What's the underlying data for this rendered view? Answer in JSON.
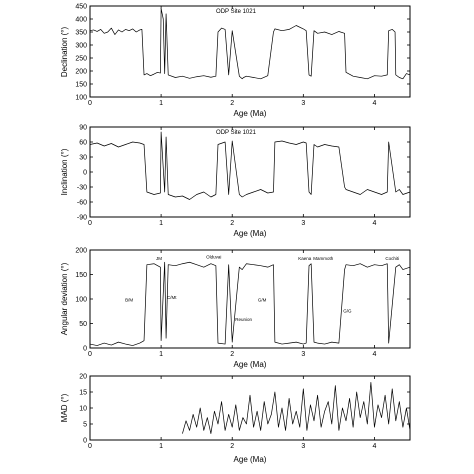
{
  "chart_data": [
    {
      "type": "line",
      "title": "ODP Site 1021",
      "xlabel": "Age (Ma)",
      "ylabel": "Declination (°)",
      "xlim": [
        0,
        4.5
      ],
      "ylim": [
        100,
        450
      ],
      "xticks": [
        "0",
        "1",
        "2",
        "3",
        "4"
      ],
      "yticks": [
        "100",
        "150",
        "200",
        "250",
        "300",
        "350",
        "400",
        "450"
      ],
      "annotations": [],
      "series": [
        {
          "x": [
            0,
            0.05,
            0.1,
            0.15,
            0.2,
            0.25,
            0.3,
            0.35,
            0.4,
            0.45,
            0.5,
            0.55,
            0.6,
            0.65,
            0.7,
            0.73,
            0.76,
            0.8,
            0.85,
            0.9,
            0.95,
            0.99,
            1.0,
            1.03,
            1.05,
            1.07,
            1.1,
            1.2,
            1.3,
            1.4,
            1.5,
            1.6,
            1.7,
            1.77,
            1.8,
            1.85,
            1.9,
            1.95,
            2.0,
            2.1,
            2.14,
            2.16,
            2.2,
            2.3,
            2.4,
            2.5,
            2.58,
            2.6,
            2.7,
            2.8,
            2.9,
            3.0,
            3.04,
            3.08,
            3.11,
            3.15,
            3.2,
            3.3,
            3.4,
            3.5,
            3.58,
            3.6,
            3.7,
            3.8,
            3.9,
            4.0,
            4.1,
            4.18,
            4.2,
            4.25,
            4.29,
            4.3,
            4.35,
            4.4,
            4.45,
            4.5
          ],
          "y": [
            355,
            358,
            352,
            360,
            345,
            350,
            365,
            340,
            358,
            350,
            360,
            355,
            362,
            350,
            358,
            360,
            185,
            190,
            182,
            188,
            195,
            192,
            440,
            400,
            190,
            420,
            185,
            175,
            180,
            172,
            178,
            182,
            176,
            180,
            350,
            365,
            360,
            185,
            355,
            180,
            170,
            175,
            180,
            175,
            170,
            182,
            350,
            362,
            355,
            360,
            375,
            362,
            355,
            185,
            180,
            355,
            345,
            350,
            340,
            352,
            345,
            195,
            180,
            175,
            170,
            182,
            180,
            185,
            355,
            360,
            350,
            185,
            175,
            170,
            190,
            185
          ]
        }
      ]
    },
    {
      "type": "line",
      "title": "ODP Site 1021",
      "xlabel": "Age (Ma)",
      "ylabel": "Inclination (°)",
      "xlim": [
        0,
        4.5
      ],
      "ylim": [
        -90,
        90
      ],
      "xticks": [
        "0",
        "1",
        "2",
        "3",
        "4"
      ],
      "yticks": [
        "-90",
        "-60",
        "-30",
        "0",
        "30",
        "60",
        "90"
      ],
      "annotations": [],
      "series": [
        {
          "x": [
            0,
            0.1,
            0.2,
            0.3,
            0.4,
            0.5,
            0.6,
            0.7,
            0.76,
            0.8,
            0.9,
            0.99,
            1.0,
            1.05,
            1.07,
            1.1,
            1.2,
            1.3,
            1.4,
            1.5,
            1.6,
            1.7,
            1.77,
            1.8,
            1.9,
            1.95,
            2.0,
            2.1,
            2.14,
            2.2,
            2.3,
            2.4,
            2.5,
            2.58,
            2.6,
            2.7,
            2.8,
            2.9,
            3.0,
            3.04,
            3.08,
            3.11,
            3.15,
            3.2,
            3.3,
            3.4,
            3.5,
            3.58,
            3.6,
            3.7,
            3.8,
            3.9,
            4.0,
            4.1,
            4.18,
            4.2,
            4.3,
            4.35,
            4.4,
            4.5
          ],
          "y": [
            55,
            58,
            52,
            57,
            50,
            55,
            60,
            58,
            55,
            -40,
            -45,
            -42,
            80,
            -40,
            70,
            -45,
            -50,
            -48,
            -55,
            -45,
            -40,
            -50,
            -45,
            55,
            60,
            -45,
            62,
            -45,
            -50,
            -45,
            -40,
            -35,
            -42,
            -40,
            60,
            62,
            58,
            55,
            60,
            58,
            -40,
            -45,
            55,
            50,
            55,
            52,
            50,
            -30,
            -35,
            -40,
            -45,
            -35,
            -40,
            -45,
            -40,
            60,
            -40,
            -35,
            -45,
            -40
          ]
        }
      ]
    },
    {
      "type": "line",
      "title": "",
      "xlabel": "Age (Ma)",
      "ylabel": "Angular deviation (°)",
      "xlim": [
        0,
        4.5
      ],
      "ylim": [
        0,
        200
      ],
      "xticks": [
        "0",
        "1",
        "2",
        "3",
        "4"
      ],
      "yticks": [
        "0",
        "50",
        "100",
        "150",
        "200"
      ],
      "annotations": [
        {
          "text": "B/M",
          "x": 0.55,
          "y": 95
        },
        {
          "text": "JM",
          "x": 0.97,
          "y": 180
        },
        {
          "text": "C/Mt",
          "x": 1.15,
          "y": 100
        },
        {
          "text": "Olduvai",
          "x": 1.74,
          "y": 183
        },
        {
          "text": "Reunion",
          "x": 2.16,
          "y": 55
        },
        {
          "text": "G/M",
          "x": 2.42,
          "y": 95
        },
        {
          "text": "Kaena",
          "x": 3.02,
          "y": 180
        },
        {
          "text": "Mammoth",
          "x": 3.28,
          "y": 180
        },
        {
          "text": "G/G",
          "x": 3.62,
          "y": 72
        },
        {
          "text": "Cochiti",
          "x": 4.25,
          "y": 180
        }
      ],
      "series": [
        {
          "x": [
            0,
            0.1,
            0.2,
            0.3,
            0.4,
            0.5,
            0.6,
            0.7,
            0.76,
            0.8,
            0.9,
            0.99,
            1.0,
            1.05,
            1.07,
            1.1,
            1.2,
            1.3,
            1.4,
            1.5,
            1.6,
            1.7,
            1.77,
            1.8,
            1.9,
            1.95,
            2.0,
            2.1,
            2.14,
            2.2,
            2.3,
            2.4,
            2.5,
            2.58,
            2.6,
            2.7,
            2.8,
            2.9,
            3.0,
            3.04,
            3.08,
            3.11,
            3.15,
            3.2,
            3.3,
            3.4,
            3.5,
            3.58,
            3.6,
            3.7,
            3.8,
            3.9,
            4.0,
            4.1,
            4.18,
            4.2,
            4.3,
            4.35,
            4.4,
            4.5
          ],
          "y": [
            8,
            5,
            10,
            6,
            12,
            8,
            5,
            10,
            15,
            170,
            172,
            165,
            15,
            175,
            20,
            170,
            168,
            172,
            175,
            170,
            165,
            172,
            168,
            10,
            8,
            170,
            12,
            165,
            160,
            172,
            170,
            168,
            165,
            170,
            12,
            8,
            10,
            12,
            8,
            10,
            168,
            172,
            12,
            10,
            8,
            12,
            10,
            160,
            170,
            168,
            172,
            165,
            170,
            168,
            172,
            10,
            165,
            170,
            160,
            165
          ]
        }
      ]
    },
    {
      "type": "line",
      "title": "",
      "xlabel": "Age (Ma)",
      "ylabel": "MAD (°)",
      "xlim": [
        0,
        4.5
      ],
      "ylim": [
        0,
        20
      ],
      "xticks": [
        "0",
        "1",
        "2",
        "3",
        "4"
      ],
      "yticks": [
        "0",
        "5",
        "10",
        "15",
        "20"
      ],
      "annotations": [],
      "series": [
        {
          "x": [
            1.3,
            1.35,
            1.4,
            1.45,
            1.5,
            1.55,
            1.6,
            1.65,
            1.7,
            1.75,
            1.8,
            1.85,
            1.9,
            1.95,
            2.0,
            2.05,
            2.1,
            2.15,
            2.2,
            2.25,
            2.3,
            2.35,
            2.4,
            2.45,
            2.5,
            2.55,
            2.6,
            2.65,
            2.7,
            2.75,
            2.8,
            2.85,
            2.9,
            2.95,
            3.0,
            3.05,
            3.1,
            3.15,
            3.2,
            3.25,
            3.3,
            3.35,
            3.4,
            3.45,
            3.5,
            3.55,
            3.6,
            3.65,
            3.7,
            3.75,
            3.8,
            3.85,
            3.9,
            3.95,
            4.0,
            4.05,
            4.1,
            4.15,
            4.2,
            4.25,
            4.3,
            4.35,
            4.4,
            4.45,
            4.5
          ],
          "y": [
            2,
            6,
            3,
            8,
            4,
            10,
            3,
            7,
            2,
            9,
            5,
            12,
            3,
            8,
            4,
            11,
            3,
            7,
            5,
            14,
            4,
            9,
            3,
            12,
            5,
            8,
            15,
            4,
            10,
            3,
            13,
            5,
            9,
            4,
            16,
            3,
            11,
            6,
            14,
            4,
            9,
            12,
            5,
            17,
            3,
            10,
            6,
            13,
            4,
            15,
            7,
            12,
            5,
            18,
            4,
            11,
            7,
            14,
            5,
            16,
            6,
            12,
            4,
            10,
            3
          ]
        }
      ]
    }
  ]
}
